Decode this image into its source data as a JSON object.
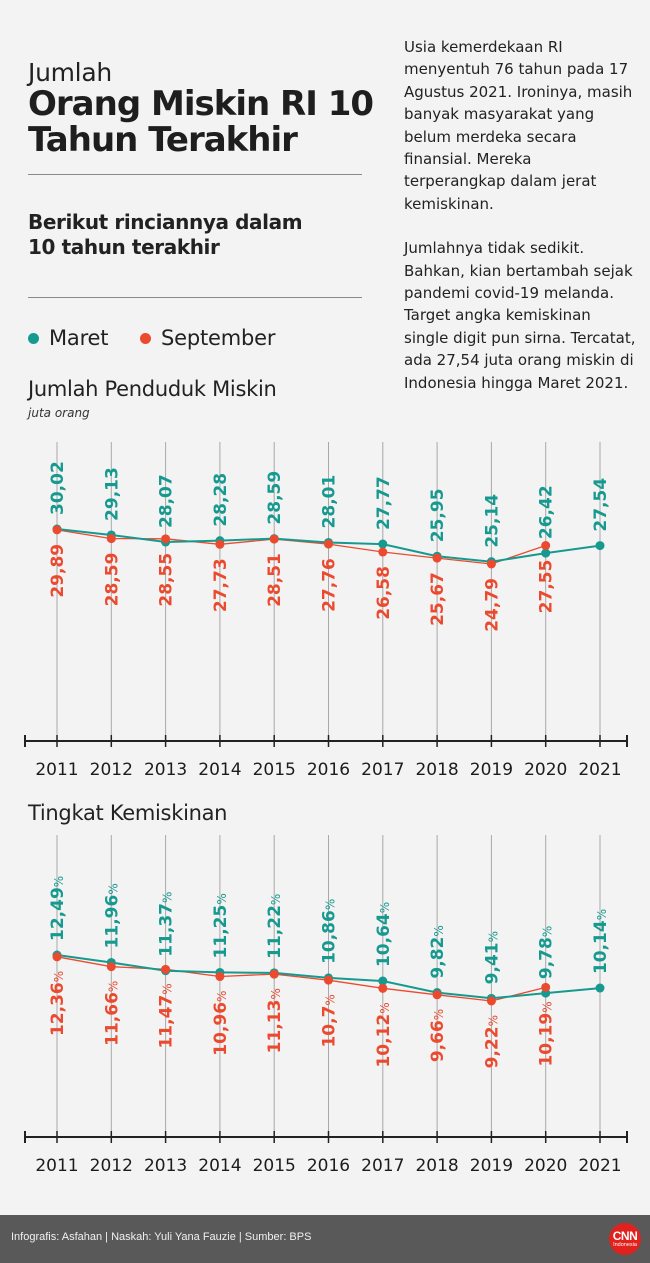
{
  "header": {
    "title_small": "Jumlah",
    "title_big": "Orang Miskin RI 10 Tahun Terakhir",
    "subtitle": "Berikut rinciannya dalam 10 tahun terakhir"
  },
  "intro": {
    "paragraph1": "Usia kemerdekaan RI menyentuh 76 tahun pada 17 Agustus 2021. Ironinya, masih banyak masyarakat yang belum merdeka secara finansial. Mereka terperangkap dalam jerat kemiskinan.",
    "paragraph2": "Jumlahnya tidak sedikit. Bahkan, kian bertambah sejak pandemi covid-19 melanda. Target angka kemiskinan single digit pun sirna. Tercatat, ada 27,54 juta orang miskin di Indonesia hingga Maret 2021."
  },
  "legend": {
    "maret": "Maret",
    "september": "September"
  },
  "colors": {
    "maret": "#169a8f",
    "september": "#eb4a2f",
    "axis": "#222222"
  },
  "chart_data": [
    {
      "type": "line",
      "title": "Jumlah Penduduk Miskin",
      "unit": "juta orang",
      "categories": [
        "2011",
        "2012",
        "2013",
        "2014",
        "2015",
        "2016",
        "2017",
        "2018",
        "2019",
        "2020",
        "2021"
      ],
      "series": [
        {
          "name": "Maret",
          "values": [
            30.02,
            29.13,
            28.07,
            28.28,
            28.59,
            28.01,
            27.77,
            25.95,
            25.14,
            26.42,
            27.54
          ],
          "labels": [
            "30,02",
            "29,13",
            "28,07",
            "28,28",
            "28,59",
            "28,01",
            "27,77",
            "25,95",
            "25,14",
            "26,42",
            "27,54"
          ]
        },
        {
          "name": "September",
          "values": [
            29.89,
            28.59,
            28.55,
            27.73,
            28.51,
            27.76,
            26.58,
            25.67,
            24.79,
            27.55,
            null
          ],
          "labels": [
            "29,89",
            "28,59",
            "28,55",
            "27,73",
            "28,51",
            "27,76",
            "26,58",
            "25,67",
            "24,79",
            "27,55",
            ""
          ]
        }
      ]
    },
    {
      "type": "line",
      "title": "Tingkat Kemiskinan",
      "unit": "%",
      "categories": [
        "2011",
        "2012",
        "2013",
        "2014",
        "2015",
        "2016",
        "2017",
        "2018",
        "2019",
        "2020",
        "2021"
      ],
      "series": [
        {
          "name": "Maret",
          "values": [
            12.49,
            11.96,
            11.37,
            11.25,
            11.22,
            10.86,
            10.64,
            9.82,
            9.41,
            9.78,
            10.14
          ],
          "labels": [
            "12,49",
            "11,96",
            "11,37",
            "11,25",
            "11,22",
            "10,86",
            "10,64",
            "9,82",
            "9,41",
            "9,78",
            "10,14"
          ]
        },
        {
          "name": "September",
          "values": [
            12.36,
            11.66,
            11.47,
            10.96,
            11.13,
            10.7,
            10.12,
            9.66,
            9.22,
            10.19,
            null
          ],
          "labels": [
            "12,36",
            "11,66",
            "11,47",
            "10,96",
            "11,13",
            "10,7",
            "10,12",
            "9,66",
            "9,22",
            "10,19",
            ""
          ]
        }
      ]
    }
  ],
  "footer": {
    "credits": "Infografis: Asfahan | Naskah: Yuli Yana Fauzie | Sumber: BPS",
    "logo_main": "CNN",
    "logo_sub": "Indonesia"
  }
}
